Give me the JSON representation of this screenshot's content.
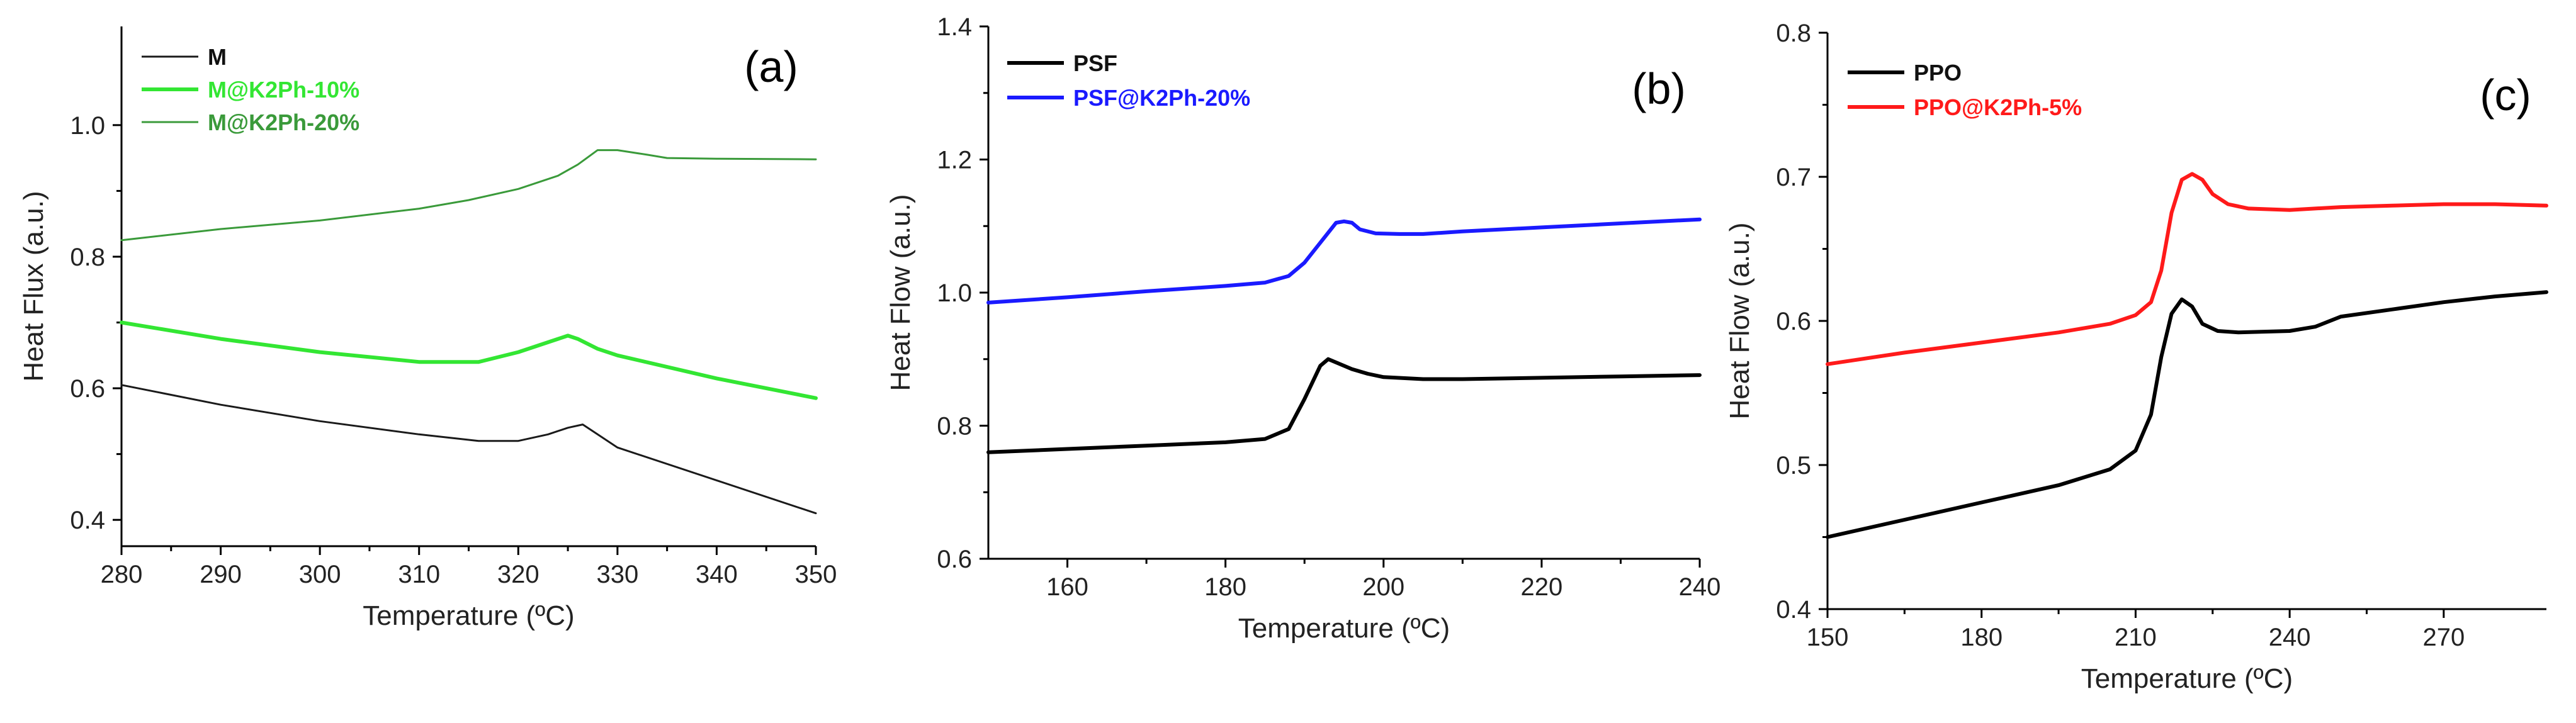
{
  "chart_data": [
    {
      "type": "line",
      "panel_label": "(a)",
      "xlabel": "Temperature (ºC)",
      "ylabel": "Heat Flux (a.u.)",
      "xlim": [
        280,
        350
      ],
      "ylim": [
        0.36,
        1.15
      ],
      "xticks": [
        280,
        290,
        300,
        310,
        320,
        330,
        340,
        350
      ],
      "xtick_labels": [
        "280",
        "290",
        "300",
        "310",
        "320",
        "330",
        "340",
        "350"
      ],
      "yticks": [
        0.4,
        0.6,
        0.8,
        1.0
      ],
      "ytick_labels": [
        "0.4",
        "0.6",
        "0.8",
        "1.0"
      ],
      "legend_position": "top-left",
      "series": [
        {
          "name": "M",
          "color": "#1a1a1a",
          "width": "thin",
          "x": [
            280,
            290,
            300,
            310,
            316,
            320,
            323,
            325,
            326.5,
            328,
            330,
            340,
            350
          ],
          "y": [
            0.605,
            0.575,
            0.55,
            0.53,
            0.52,
            0.52,
            0.53,
            0.54,
            0.545,
            0.53,
            0.51,
            0.46,
            0.41
          ]
        },
        {
          "name": "M@K2Ph-10%",
          "color": "#33e633",
          "width": "thick",
          "x": [
            280,
            290,
            300,
            310,
            316,
            320,
            323,
            325,
            326,
            328,
            330,
            340,
            350
          ],
          "y": [
            0.7,
            0.675,
            0.655,
            0.64,
            0.64,
            0.655,
            0.67,
            0.68,
            0.675,
            0.66,
            0.65,
            0.615,
            0.585
          ]
        },
        {
          "name": "M@K2Ph-20%",
          "color": "#3a9a3a",
          "width": "thin",
          "x": [
            280,
            290,
            300,
            310,
            315,
            320,
            324,
            326,
            328,
            330,
            333,
            335,
            340,
            350
          ],
          "y": [
            0.825,
            0.842,
            0.855,
            0.873,
            0.886,
            0.903,
            0.923,
            0.94,
            0.962,
            0.962,
            0.955,
            0.95,
            0.949,
            0.948
          ]
        }
      ]
    },
    {
      "type": "line",
      "panel_label": "(b)",
      "xlabel": "Temperature (ºC)",
      "ylabel": "Heat Flow (a.u.)",
      "xlim": [
        150,
        240
      ],
      "ylim": [
        0.6,
        1.4
      ],
      "xticks": [
        160,
        180,
        200,
        220,
        240
      ],
      "xtick_labels": [
        "160",
        "180",
        "200",
        "220",
        "240"
      ],
      "yticks": [
        0.6,
        0.8,
        1.0,
        1.2,
        1.4
      ],
      "ytick_labels": [
        "0.6",
        "0.8",
        "1.0",
        "1.2",
        "1.4"
      ],
      "legend_position": "top-left",
      "series": [
        {
          "name": "PSF",
          "color": "#000000",
          "width": "thick",
          "x": [
            150,
            160,
            170,
            180,
            185,
            188,
            190,
            192,
            193,
            194,
            196,
            198,
            200,
            205,
            210,
            220,
            230,
            240
          ],
          "y": [
            0.76,
            0.765,
            0.77,
            0.775,
            0.78,
            0.795,
            0.84,
            0.89,
            0.9,
            0.895,
            0.885,
            0.878,
            0.873,
            0.87,
            0.87,
            0.872,
            0.874,
            0.876
          ]
        },
        {
          "name": "PSF@K2Ph-20%",
          "color": "#1a1aff",
          "width": "thick",
          "x": [
            150,
            160,
            170,
            180,
            185,
            188,
            190,
            192,
            194,
            195,
            196,
            197,
            199,
            202,
            205,
            210,
            220,
            230,
            240
          ],
          "y": [
            0.985,
            0.993,
            1.002,
            1.01,
            1.015,
            1.025,
            1.045,
            1.075,
            1.105,
            1.107,
            1.105,
            1.095,
            1.089,
            1.088,
            1.088,
            1.092,
            1.098,
            1.104,
            1.11
          ]
        }
      ]
    },
    {
      "type": "line",
      "panel_label": "(c)",
      "xlabel": "Temperature (ºC)",
      "ylabel": "Heat Flow (a.u.)",
      "xlim": [
        150,
        290
      ],
      "ylim": [
        0.4,
        0.8
      ],
      "xticks": [
        150,
        180,
        210,
        240,
        270
      ],
      "xtick_labels": [
        "150",
        "180",
        "210",
        "240",
        "270"
      ],
      "yticks": [
        0.4,
        0.5,
        0.6,
        0.7,
        0.8
      ],
      "ytick_labels": [
        "0.4",
        "0.5",
        "0.6",
        "0.7",
        "0.8"
      ],
      "legend_position": "top-left",
      "series": [
        {
          "name": "PPO",
          "color": "#000000",
          "width": "thick",
          "x": [
            150,
            165,
            180,
            195,
            205,
            210,
            213,
            215,
            217,
            219,
            221,
            223,
            226,
            230,
            240,
            245,
            250,
            260,
            270,
            280,
            290
          ],
          "y": [
            0.45,
            0.462,
            0.474,
            0.486,
            0.497,
            0.51,
            0.535,
            0.575,
            0.605,
            0.615,
            0.61,
            0.598,
            0.593,
            0.592,
            0.593,
            0.596,
            0.603,
            0.608,
            0.613,
            0.617,
            0.62
          ]
        },
        {
          "name": "PPO@K2Ph-5%",
          "color": "#ff1a1a",
          "width": "thick",
          "x": [
            150,
            165,
            180,
            195,
            205,
            210,
            213,
            215,
            217,
            219,
            221,
            223,
            225,
            228,
            232,
            240,
            250,
            260,
            270,
            280,
            290
          ],
          "y": [
            0.57,
            0.578,
            0.585,
            0.592,
            0.598,
            0.604,
            0.613,
            0.635,
            0.675,
            0.698,
            0.702,
            0.698,
            0.688,
            0.681,
            0.678,
            0.677,
            0.679,
            0.68,
            0.681,
            0.681,
            0.68
          ]
        }
      ]
    }
  ]
}
